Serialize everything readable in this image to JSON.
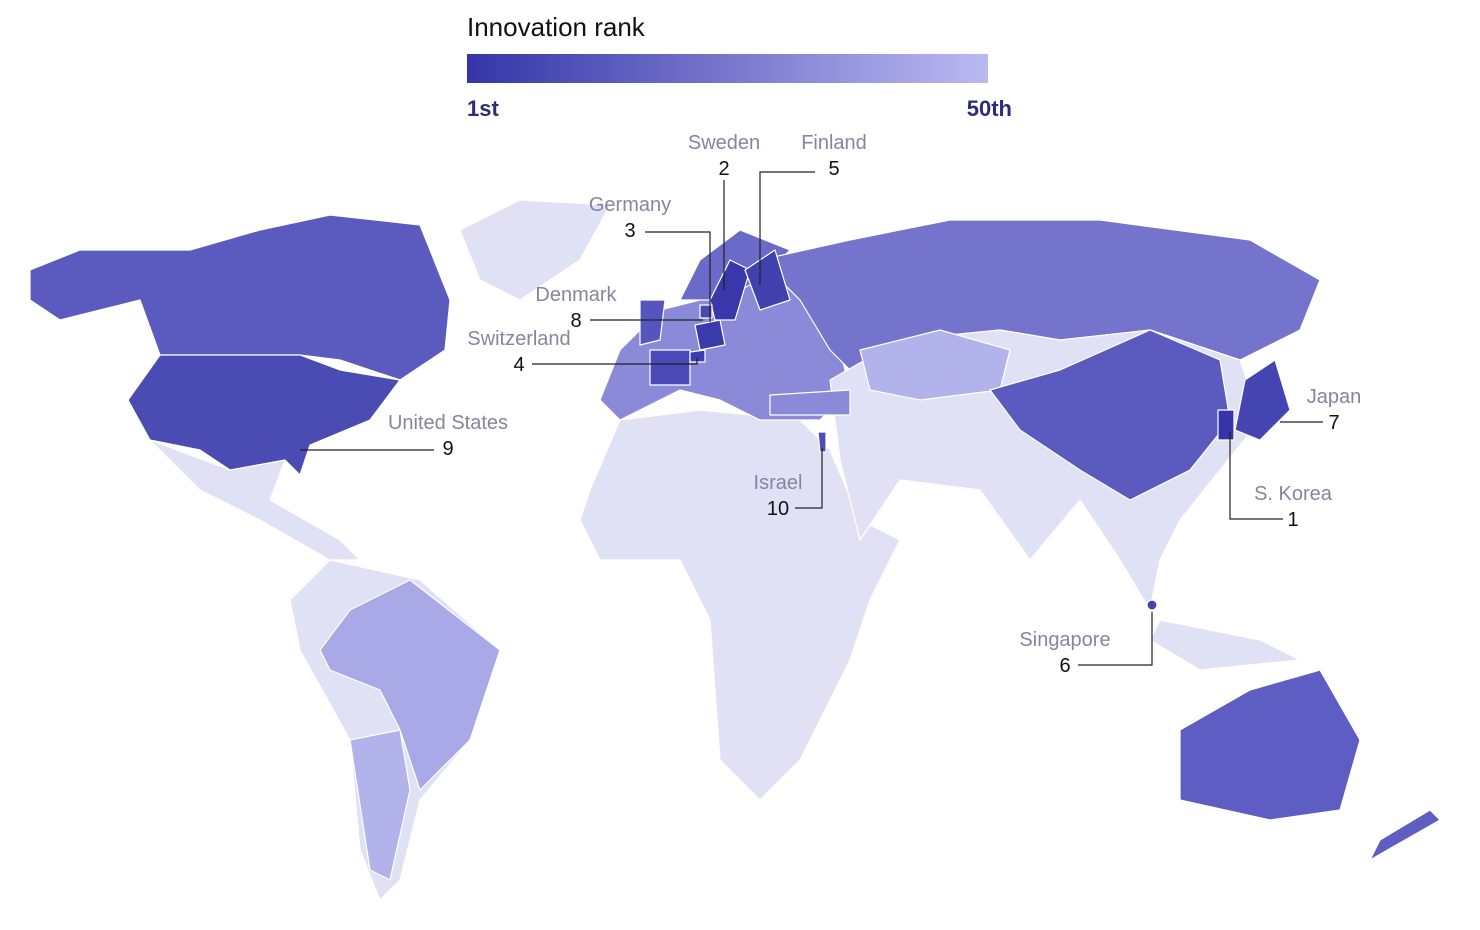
{
  "legend": {
    "title": "Innovation rank",
    "colors": [
      "#3535a8",
      "#babaf2"
    ],
    "ticks": [
      {
        "value": 1,
        "label": "1st"
      },
      {
        "value": 50,
        "label": "50th"
      }
    ]
  },
  "countries": [
    {
      "name": "Sweden",
      "rank": 2
    },
    {
      "name": "Finland",
      "rank": 5
    },
    {
      "name": "Germany",
      "rank": 3
    },
    {
      "name": "Denmark",
      "rank": 8
    },
    {
      "name": "Switzerland",
      "rank": 4
    },
    {
      "name": "United States",
      "rank": 9
    },
    {
      "name": "Israel",
      "rank": 10
    },
    {
      "name": "Japan",
      "rank": 7
    },
    {
      "name": "S. Korea",
      "rank": 1
    },
    {
      "name": "Singapore",
      "rank": 6
    }
  ]
}
